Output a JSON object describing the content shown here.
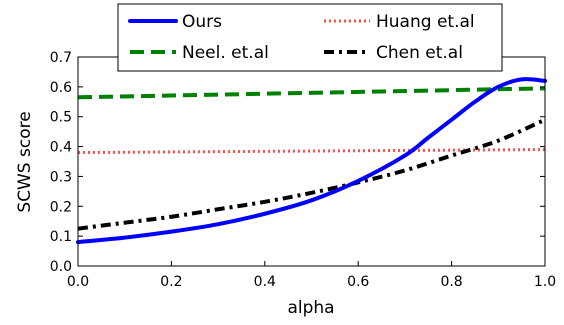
{
  "chart_data": {
    "type": "line",
    "xlabel": "alpha",
    "ylabel": "SCWS score",
    "xlim": [
      0.0,
      1.0
    ],
    "ylim": [
      0.0,
      0.7
    ],
    "xticks": [
      "0.0",
      "0.2",
      "0.4",
      "0.6",
      "0.8",
      "1.0"
    ],
    "yticks": [
      "0.0",
      "0.1",
      "0.2",
      "0.3",
      "0.4",
      "0.5",
      "0.6",
      "0.7"
    ],
    "grid": false,
    "legend": "top-center",
    "series": [
      {
        "name": "Ours",
        "color": "#0000ff",
        "style": "solid",
        "x": [
          0.0,
          0.1,
          0.2,
          0.3,
          0.4,
          0.5,
          0.6,
          0.7,
          0.75,
          0.8,
          0.85,
          0.9,
          0.95,
          1.0
        ],
        "y": [
          0.08,
          0.095,
          0.115,
          0.14,
          0.175,
          0.22,
          0.285,
          0.37,
          0.43,
          0.49,
          0.55,
          0.6,
          0.625,
          0.62
        ]
      },
      {
        "name": "Neel. et.al",
        "color": "#008000",
        "style": "dashed",
        "x": [
          0.0,
          1.0
        ],
        "y": [
          0.565,
          0.595
        ]
      },
      {
        "name": "Huang et.al",
        "color": "#ff4d4d",
        "style": "dotted",
        "x": [
          0.0,
          1.0
        ],
        "y": [
          0.38,
          0.39
        ]
      },
      {
        "name": "Chen et.al",
        "color": "#000000",
        "style": "dashdot",
        "x": [
          0.0,
          0.1,
          0.2,
          0.3,
          0.4,
          0.5,
          0.6,
          0.7,
          0.8,
          0.9,
          1.0
        ],
        "y": [
          0.125,
          0.145,
          0.165,
          0.19,
          0.215,
          0.245,
          0.28,
          0.32,
          0.37,
          0.42,
          0.49
        ]
      }
    ]
  }
}
